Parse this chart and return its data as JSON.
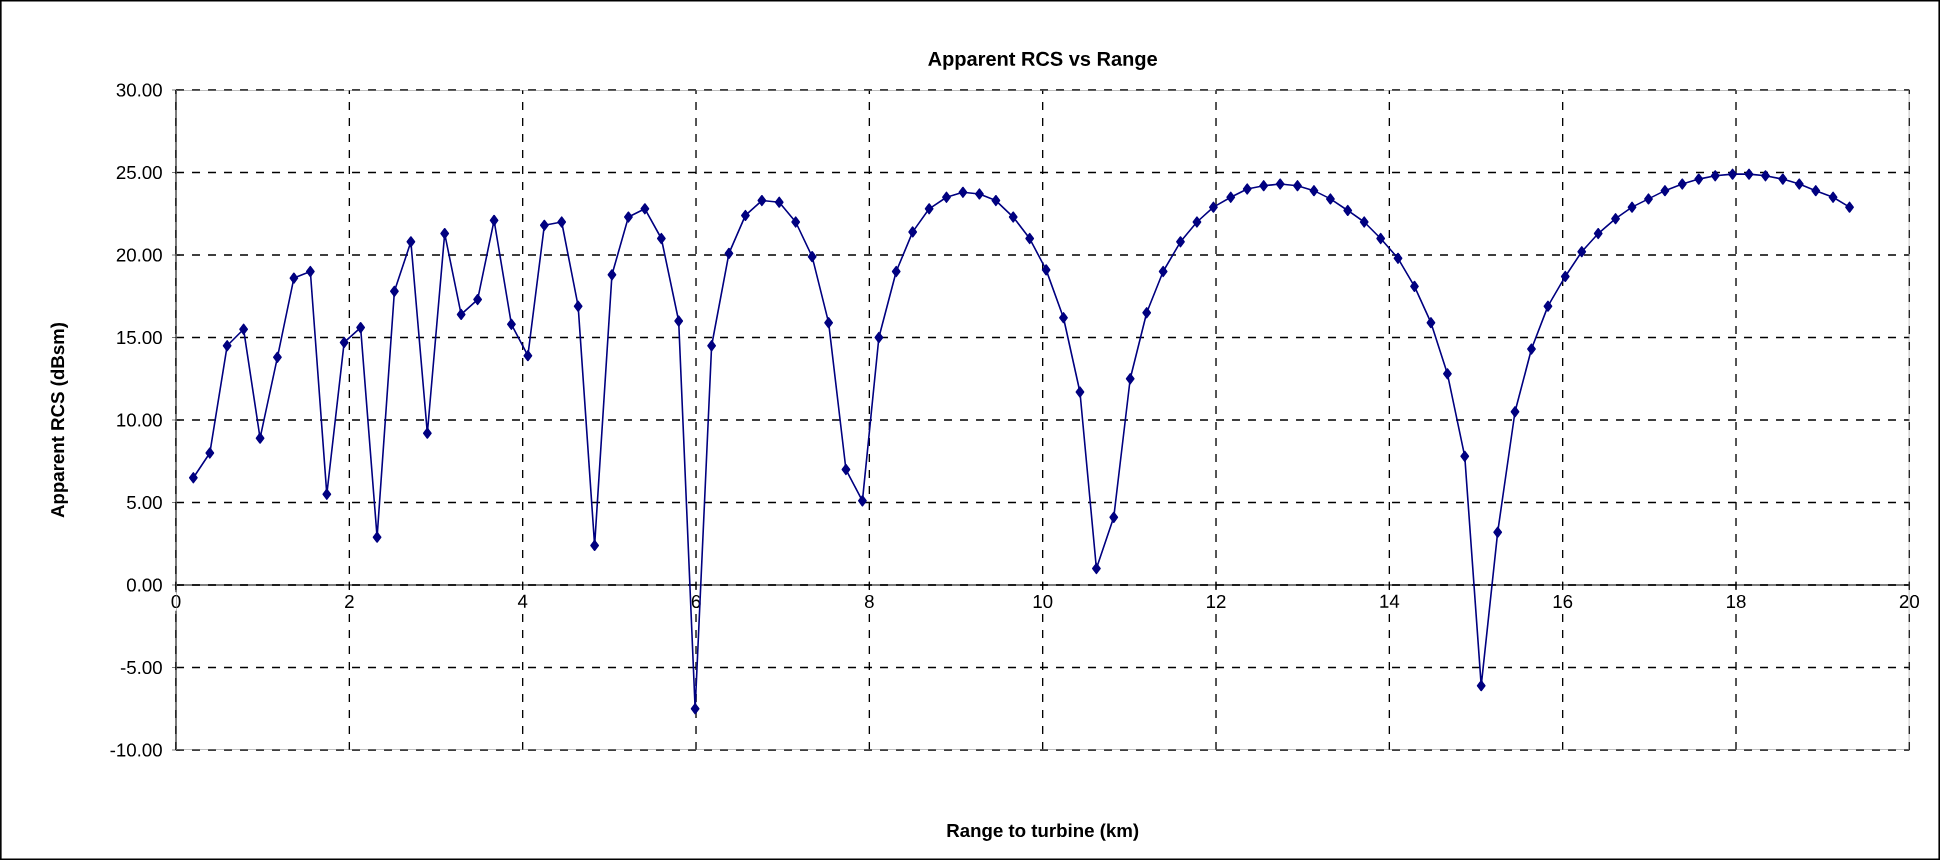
{
  "chart_data": {
    "type": "line",
    "title": "Apparent RCS vs Range",
    "xlabel": "Range to turbine (km)",
    "ylabel": "Apparent RCS (dBsm)",
    "x": [
      0.2,
      0.39,
      0.59,
      0.78,
      0.97,
      1.17,
      1.36,
      1.55,
      1.74,
      1.94,
      2.13,
      2.32,
      2.52,
      2.71,
      2.9,
      3.1,
      3.29,
      3.48,
      3.67,
      3.87,
      4.06,
      4.25,
      4.45,
      4.64,
      4.83,
      5.03,
      5.22,
      5.41,
      5.6,
      5.8,
      5.99,
      6.18,
      6.38,
      6.57,
      6.76,
      6.96,
      7.15,
      7.34,
      7.53,
      7.73,
      7.92,
      8.11,
      8.31,
      8.5,
      8.69,
      8.89,
      9.08,
      9.27,
      9.46,
      9.66,
      9.85,
      10.04,
      10.24,
      10.43,
      10.62,
      10.82,
      11.01,
      11.2,
      11.39,
      11.59,
      11.78,
      11.97,
      12.17,
      12.36,
      12.55,
      12.74,
      12.94,
      13.13,
      13.32,
      13.52,
      13.71,
      13.9,
      14.1,
      14.29,
      14.48,
      14.67,
      14.87,
      15.06,
      15.25,
      15.45,
      15.64,
      15.83,
      16.03,
      16.22,
      16.41,
      16.61,
      16.8,
      16.99,
      17.18,
      17.38,
      17.57,
      17.76,
      17.96,
      18.15,
      18.34,
      18.54,
      18.73,
      18.92,
      19.12,
      19.31
    ],
    "values": [
      6.5,
      8.0,
      14.5,
      15.5,
      8.9,
      13.8,
      18.6,
      19.0,
      5.5,
      14.7,
      15.6,
      2.9,
      17.8,
      20.8,
      9.2,
      21.3,
      16.4,
      17.3,
      22.1,
      15.8,
      13.9,
      21.8,
      22.0,
      16.9,
      2.4,
      18.8,
      22.3,
      22.8,
      21.0,
      16.0,
      -7.5,
      14.5,
      20.1,
      22.4,
      23.3,
      23.2,
      22.0,
      19.9,
      15.9,
      7.0,
      5.1,
      15.0,
      19.0,
      21.4,
      22.8,
      23.5,
      23.8,
      23.7,
      23.3,
      22.3,
      21.0,
      19.1,
      16.2,
      11.7,
      1.0,
      4.1,
      12.5,
      16.5,
      19.0,
      20.8,
      22.0,
      22.9,
      23.5,
      24.0,
      24.2,
      24.3,
      24.2,
      23.9,
      23.4,
      22.7,
      22.0,
      21.0,
      19.8,
      18.1,
      15.9,
      12.8,
      7.8,
      -6.1,
      3.2,
      10.5,
      14.3,
      16.9,
      18.7,
      20.2,
      21.3,
      22.2,
      22.9,
      23.4,
      23.9,
      24.3,
      24.6,
      24.8,
      24.9,
      24.9,
      24.8,
      24.6,
      24.3,
      23.9,
      23.5,
      22.9
    ],
    "color": "#000080",
    "marker": "diamond",
    "line_style": "solid",
    "grid": true,
    "xlim": [
      0,
      20
    ],
    "xticks": [
      0,
      2,
      4,
      6,
      8,
      10,
      12,
      14,
      16,
      18,
      20
    ],
    "ylim": [
      -10,
      30
    ],
    "yticks": [
      {
        "value": -10,
        "label": "-10.00"
      },
      {
        "value": -5,
        "label": "-5.00"
      },
      {
        "value": 0,
        "label": "0.00"
      },
      {
        "value": 5,
        "label": "5.00"
      },
      {
        "value": 10,
        "label": "10.00"
      },
      {
        "value": 15,
        "label": "15.00"
      },
      {
        "value": 20,
        "label": "20.00"
      },
      {
        "value": 25,
        "label": "25.00"
      },
      {
        "value": 30,
        "label": "30.00"
      }
    ]
  }
}
